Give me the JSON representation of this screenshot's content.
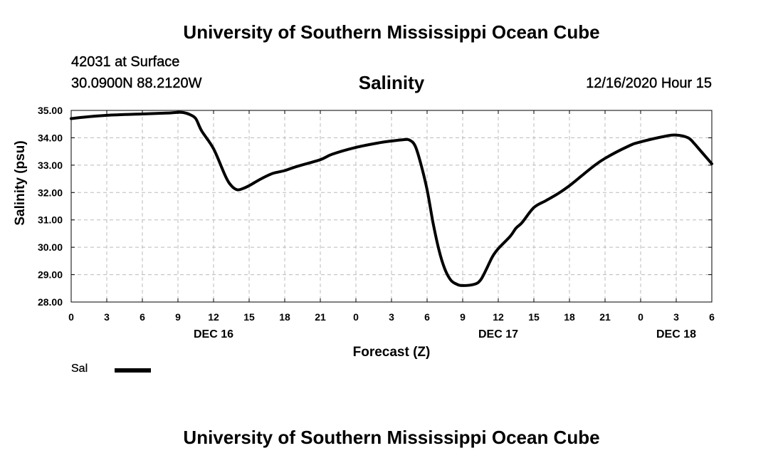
{
  "header": {
    "title": "University of Southern Mississippi Ocean Cube",
    "station": "42031 at Surface",
    "coords": "30.0900N 88.2120W",
    "subtitle": "Salinity",
    "datetime": "12/16/2020 Hour 15"
  },
  "footer": {
    "title": "University of Southern Mississippi Ocean Cube"
  },
  "colors": {
    "line": "#000000",
    "grid": "#bbbbbb",
    "background": "#ffffff"
  },
  "chart_data": {
    "type": "line",
    "title": "Salinity",
    "xlabel": "Forecast (Z)",
    "ylabel": "Salinity (psu)",
    "xlim": [
      0,
      54
    ],
    "ylim": [
      28.0,
      35.0
    ],
    "x_ticks": [
      0,
      3,
      6,
      9,
      12,
      15,
      18,
      21,
      24,
      27,
      30,
      33,
      36,
      39,
      42,
      45,
      48,
      51,
      54
    ],
    "x_tick_labels": [
      "0",
      "3",
      "6",
      "9",
      "12",
      "15",
      "18",
      "21",
      "0",
      "3",
      "6",
      "9",
      "12",
      "15",
      "18",
      "21",
      "0",
      "3",
      "6"
    ],
    "y_ticks": [
      28,
      29,
      30,
      31,
      32,
      33,
      34,
      35
    ],
    "y_tick_labels": [
      "28.00",
      "29.00",
      "30.00",
      "31.00",
      "32.00",
      "33.00",
      "34.00",
      "35.00"
    ],
    "day_labels": [
      {
        "x": 12,
        "label": "DEC 16"
      },
      {
        "x": 36,
        "label": "DEC 17"
      },
      {
        "x": 51,
        "label": "DEC 18"
      }
    ],
    "grid": true,
    "legend": {
      "position": "bottom-left",
      "entries": [
        "Sal"
      ]
    },
    "series": [
      {
        "name": "Sal",
        "x": [
          0,
          1,
          3,
          6,
          8,
          9,
          9.5,
          10,
          10.5,
          11,
          12,
          13,
          13.5,
          14,
          14.5,
          15,
          16,
          17,
          18,
          19,
          21,
          22,
          24,
          26,
          27,
          28,
          28.5,
          29,
          29.5,
          30,
          30.5,
          31,
          31.5,
          32,
          32.5,
          33,
          34,
          34.5,
          35,
          35.5,
          36,
          37,
          37.5,
          38,
          39,
          40,
          41,
          42,
          43,
          44,
          45,
          47,
          48,
          50,
          51,
          52,
          52.5,
          53,
          53.5,
          54
        ],
        "y": [
          34.7,
          34.75,
          34.82,
          34.87,
          34.9,
          34.93,
          34.92,
          34.85,
          34.7,
          34.25,
          33.6,
          32.6,
          32.25,
          32.1,
          32.15,
          32.25,
          32.5,
          32.7,
          32.8,
          32.95,
          33.2,
          33.4,
          33.65,
          33.82,
          33.88,
          33.93,
          33.92,
          33.7,
          33.0,
          32.1,
          30.9,
          29.9,
          29.2,
          28.8,
          28.65,
          28.6,
          28.65,
          28.8,
          29.2,
          29.65,
          29.95,
          30.4,
          30.7,
          30.9,
          31.45,
          31.7,
          31.95,
          32.25,
          32.6,
          32.95,
          33.25,
          33.7,
          33.85,
          34.05,
          34.1,
          34.0,
          33.8,
          33.55,
          33.3,
          33.05
        ]
      }
    ]
  },
  "legend_label": "Sal"
}
